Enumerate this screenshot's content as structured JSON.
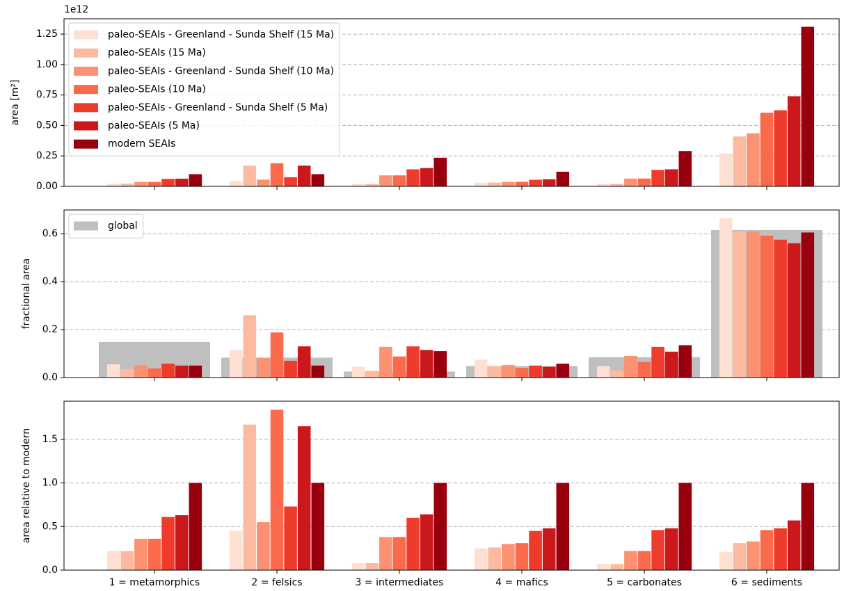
{
  "chart_data": [
    {
      "type": "bar",
      "ylabel": "area [m²]",
      "y_offset_text": "1e12",
      "ylim": [
        0,
        1.376
      ],
      "yticks": [
        {
          "value": 0,
          "label": "0.00"
        },
        {
          "value": 0.25,
          "label": "0.25"
        },
        {
          "value": 0.5,
          "label": "0.50"
        },
        {
          "value": 0.75,
          "label": "0.75"
        },
        {
          "value": 1.0,
          "label": "1.00"
        },
        {
          "value": 1.25,
          "label": "1.25"
        }
      ],
      "grid": true,
      "legend": "upper left",
      "series": [
        {
          "name": "paleo-SEAIs - Greenland - Sunda Shelf (15 Ma)",
          "color": "#fee0d2",
          "values": [
            0.022,
            0.045,
            0.019,
            0.03,
            0.02,
            0.27
          ]
        },
        {
          "name": "paleo-SEAIs (15 Ma)",
          "color": "#fcbba1",
          "values": [
            0.022,
            0.17,
            0.019,
            0.031,
            0.02,
            0.41
          ]
        },
        {
          "name": "paleo-SEAIs - Greenland - Sunda Shelf (10 Ma)",
          "color": "#fc9272",
          "values": [
            0.036,
            0.055,
            0.09,
            0.036,
            0.064,
            0.435
          ]
        },
        {
          "name": "paleo-SEAIs (10 Ma)",
          "color": "#fb6a4a",
          "values": [
            0.036,
            0.19,
            0.09,
            0.037,
            0.064,
            0.605
          ]
        },
        {
          "name": "paleo-SEAIs - Greenland - Sunda Shelf (5 Ma)",
          "color": "#ef3b2c",
          "values": [
            0.061,
            0.075,
            0.14,
            0.054,
            0.135,
            0.625
          ]
        },
        {
          "name": "paleo-SEAIs (5 Ma)",
          "color": "#cb181d",
          "values": [
            0.063,
            0.17,
            0.15,
            0.058,
            0.14,
            0.74
          ]
        },
        {
          "name": "modern SEAIs",
          "color": "#99000d",
          "values": [
            0.1,
            0.1,
            0.235,
            0.12,
            0.29,
            1.31
          ]
        }
      ]
    },
    {
      "type": "bar",
      "ylabel": "fractional area",
      "ylim": [
        0,
        0.699
      ],
      "yticks": [
        {
          "value": 0,
          "label": "0.0"
        },
        {
          "value": 0.2,
          "label": "0.2"
        },
        {
          "value": 0.4,
          "label": "0.4"
        },
        {
          "value": 0.6,
          "label": "0.6"
        }
      ],
      "grid": true,
      "legend": "upper left",
      "reference": {
        "name": "global",
        "color": "#bfbfbf",
        "values": [
          0.148,
          0.083,
          0.025,
          0.048,
          0.085,
          0.615
        ]
      },
      "series": [
        {
          "color": "#fee0d2",
          "values": [
            0.055,
            0.115,
            0.045,
            0.075,
            0.048,
            0.665
          ]
        },
        {
          "color": "#fcbba1",
          "values": [
            0.035,
            0.26,
            0.028,
            0.048,
            0.03,
            0.61
          ]
        },
        {
          "color": "#fc9272",
          "values": [
            0.052,
            0.082,
            0.128,
            0.052,
            0.09,
            0.61
          ]
        },
        {
          "color": "#fb6a4a",
          "values": [
            0.038,
            0.188,
            0.088,
            0.04,
            0.065,
            0.592
          ]
        },
        {
          "color": "#ef3b2c",
          "values": [
            0.058,
            0.07,
            0.13,
            0.05,
            0.128,
            0.575
          ]
        },
        {
          "color": "#cb181d",
          "values": [
            0.05,
            0.13,
            0.115,
            0.045,
            0.108,
            0.56
          ]
        },
        {
          "color": "#99000d",
          "values": [
            0.05,
            0.05,
            0.11,
            0.058,
            0.135,
            0.605
          ]
        }
      ]
    },
    {
      "type": "bar",
      "ylabel": "area relative to modern",
      "ylim": [
        0,
        1.938
      ],
      "yticks": [
        {
          "value": 0,
          "label": "0.0"
        },
        {
          "value": 0.5,
          "label": "0.5"
        },
        {
          "value": 1.0,
          "label": "1.0"
        },
        {
          "value": 1.5,
          "label": "1.5"
        }
      ],
      "grid": true,
      "categories": [
        "1 = metamorphics",
        "2 = felsics",
        "3 = intermediates",
        "4 = mafics",
        "5 = carbonates",
        "6 = sediments"
      ],
      "series": [
        {
          "color": "#fee0d2",
          "values": [
            0.22,
            0.45,
            0.08,
            0.25,
            0.07,
            0.21
          ]
        },
        {
          "color": "#fcbba1",
          "values": [
            0.22,
            1.67,
            0.08,
            0.26,
            0.07,
            0.31
          ]
        },
        {
          "color": "#fc9272",
          "values": [
            0.36,
            0.55,
            0.38,
            0.3,
            0.22,
            0.33
          ]
        },
        {
          "color": "#fb6a4a",
          "values": [
            0.36,
            1.84,
            0.38,
            0.31,
            0.22,
            0.46
          ]
        },
        {
          "color": "#ef3b2c",
          "values": [
            0.61,
            0.73,
            0.6,
            0.45,
            0.46,
            0.48
          ]
        },
        {
          "color": "#cb181d",
          "values": [
            0.63,
            1.65,
            0.64,
            0.48,
            0.48,
            0.57
          ]
        },
        {
          "color": "#99000d",
          "values": [
            1.0,
            1.0,
            1.0,
            1.0,
            1.0,
            1.0
          ]
        }
      ]
    }
  ]
}
